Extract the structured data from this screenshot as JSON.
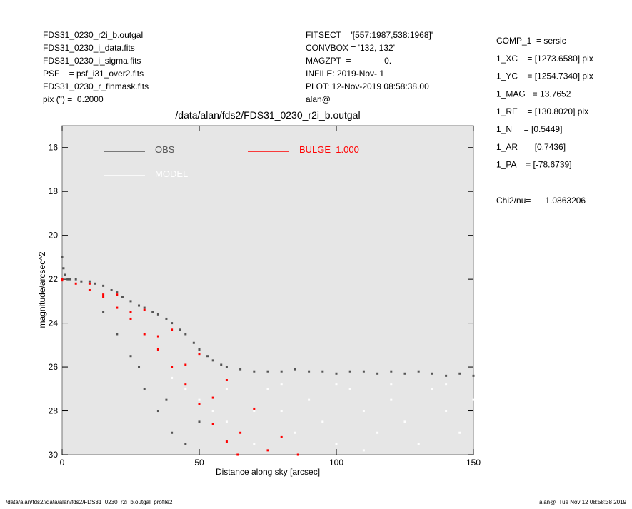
{
  "header": {
    "left": [
      "FDS31_0230_r2i_b.outgal",
      "FDS31_0230_i_data.fits",
      "FDS31_0230_i_sigma.fits",
      "PSF    = psf_i31_over2.fits",
      "FDS31_0230_r_finmask.fits",
      "pix (\") =  0.2000"
    ],
    "middle": [
      "FITSECT = '[557:1987,538:1968]'",
      "CONVBOX = '132, 132'",
      "MAGZPT  =              0.",
      "INFILE: 2019-Nov- 1",
      "PLOT: 12-Nov-2019 08:58:38.00",
      "alan@"
    ],
    "right": [
      "COMP_1  = sersic",
      "1_XC    = [1273.6580] pix",
      "1_YC    = [1254.7340] pix",
      "1_MAG   = 13.7652",
      "1_RE    = [130.8020] pix",
      "1_N     = [0.5449]",
      "1_AR    = [0.7436]",
      "1_PA    = [-78.6739]"
    ],
    "chi": "Chi2/nu=      1.0863206"
  },
  "footer": {
    "left": "/data/alan/fds2//data/alan/fds2/FDS31_0230_r2i_b.outgal_profile2",
    "right": "alan@  Tue Nov 12 08:58:38 2019"
  },
  "chart_data": {
    "type": "scatter",
    "title": "/data/alan/fds2/FDS31_0230_r2i_b.outgal",
    "x_label": "Distance along sky [arcsec]",
    "y_label": "magnitude/arcsec^2",
    "xlim": [
      0,
      150
    ],
    "ylim": [
      30,
      15
    ],
    "xticks": [
      0,
      50,
      100,
      150
    ],
    "yticks": [
      16,
      18,
      20,
      22,
      24,
      26,
      28,
      30
    ],
    "series": [
      {
        "name": "OBS",
        "color": "#555555",
        "x": [
          0,
          0.5,
          1,
          2,
          3,
          5,
          7,
          10,
          12,
          15,
          18,
          20,
          22,
          25,
          28,
          30,
          33,
          35,
          38,
          40,
          43,
          45,
          48,
          50,
          53,
          55,
          58,
          60,
          65,
          70,
          75,
          80,
          85,
          90,
          95,
          100,
          105,
          110,
          115,
          120,
          125,
          130,
          135,
          140,
          145,
          150,
          20,
          25,
          30,
          35,
          40,
          45,
          15,
          28,
          50,
          38
        ],
        "values": [
          21,
          21.5,
          21.8,
          22,
          22,
          22,
          22.1,
          22.1,
          22.2,
          22.3,
          22.5,
          22.6,
          22.8,
          23,
          23.2,
          23.3,
          23.5,
          23.6,
          23.8,
          24,
          24.3,
          24.5,
          24.9,
          25.2,
          25.5,
          25.7,
          25.9,
          26,
          26.1,
          26.2,
          26.2,
          26.2,
          26.1,
          26.2,
          26.2,
          26.3,
          26.2,
          26.2,
          26.3,
          26.2,
          26.3,
          26.2,
          26.3,
          26.4,
          26.3,
          26.4,
          24.5,
          25.5,
          27,
          28,
          29,
          29.5,
          23.5,
          26,
          28.5,
          27.5
        ]
      },
      {
        "name": "MODEL",
        "color": "#ffffff",
        "x": [
          40,
          45,
          50,
          55,
          60,
          65,
          70,
          75,
          80,
          85,
          90,
          95,
          100,
          105,
          110,
          115,
          120,
          125,
          130,
          135,
          140,
          145,
          150,
          60,
          80,
          100,
          120,
          140,
          70,
          110
        ],
        "values": [
          26.5,
          27,
          27.5,
          28,
          28.5,
          29,
          29.5,
          27,
          28,
          29,
          27.5,
          28.5,
          29.5,
          27,
          28,
          29,
          27.5,
          28.5,
          29.5,
          27,
          28,
          29,
          27.5,
          27,
          26.8,
          26.8,
          26.8,
          26.8,
          28,
          29.8
        ]
      },
      {
        "name": "BULGE  1.000",
        "color": "#ff0000",
        "x": [
          0,
          10,
          20,
          30,
          40,
          50,
          60,
          70,
          80,
          86,
          0,
          10,
          20,
          30,
          40,
          50,
          60,
          64,
          5,
          15,
          25,
          35,
          45,
          55,
          65,
          75,
          15,
          25,
          35,
          45,
          55
        ],
        "values": [
          22,
          22.2,
          22.7,
          23.4,
          24.3,
          25.4,
          26.6,
          27.9,
          29.2,
          30,
          22.05,
          22.5,
          23.3,
          24.5,
          26,
          27.7,
          29.4,
          30,
          22.2,
          22.7,
          23.5,
          24.6,
          25.9,
          27.4,
          29,
          29.8,
          22.8,
          23.8,
          25.2,
          26.8,
          28.6
        ]
      }
    ]
  }
}
